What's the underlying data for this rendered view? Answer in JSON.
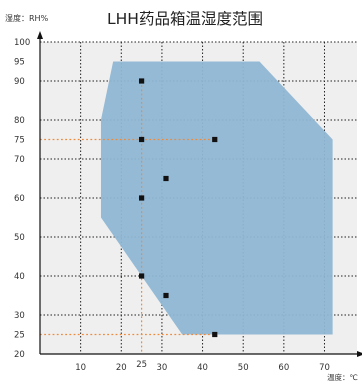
{
  "chart_data": {
    "type": "area",
    "title": "LHH药品箱温湿度范围",
    "ylabel": "湿度：RH%",
    "xlabel": "温度：℃",
    "x_ticks": [
      10,
      20,
      25,
      30,
      40,
      50,
      60,
      70
    ],
    "y_ticks": [
      20,
      25,
      30,
      40,
      50,
      60,
      70,
      75,
      80,
      90,
      95,
      100
    ],
    "xlim": [
      0,
      78
    ],
    "ylim": [
      20,
      100
    ],
    "grid": true,
    "region": {
      "name": "temperature-humidity range",
      "points": [
        [
          18,
          95
        ],
        [
          54,
          95
        ],
        [
          72,
          75
        ],
        [
          72,
          25
        ],
        [
          35,
          25
        ],
        [
          15,
          55
        ],
        [
          15,
          80
        ]
      ],
      "fill": "#8fb6d3"
    },
    "points": [
      [
        25,
        90
      ],
      [
        25,
        75
      ],
      [
        25,
        60
      ],
      [
        25,
        40
      ],
      [
        31,
        65
      ],
      [
        31,
        35
      ],
      [
        43,
        75
      ],
      [
        43,
        25
      ]
    ],
    "reference_lines": {
      "vertical_x": [
        25
      ],
      "horizontal_y": [
        75,
        25
      ]
    },
    "colors": {
      "region": "#8fb6d3",
      "point": "#111111",
      "grid": "#222222",
      "reference": "#ee8a3a"
    }
  }
}
